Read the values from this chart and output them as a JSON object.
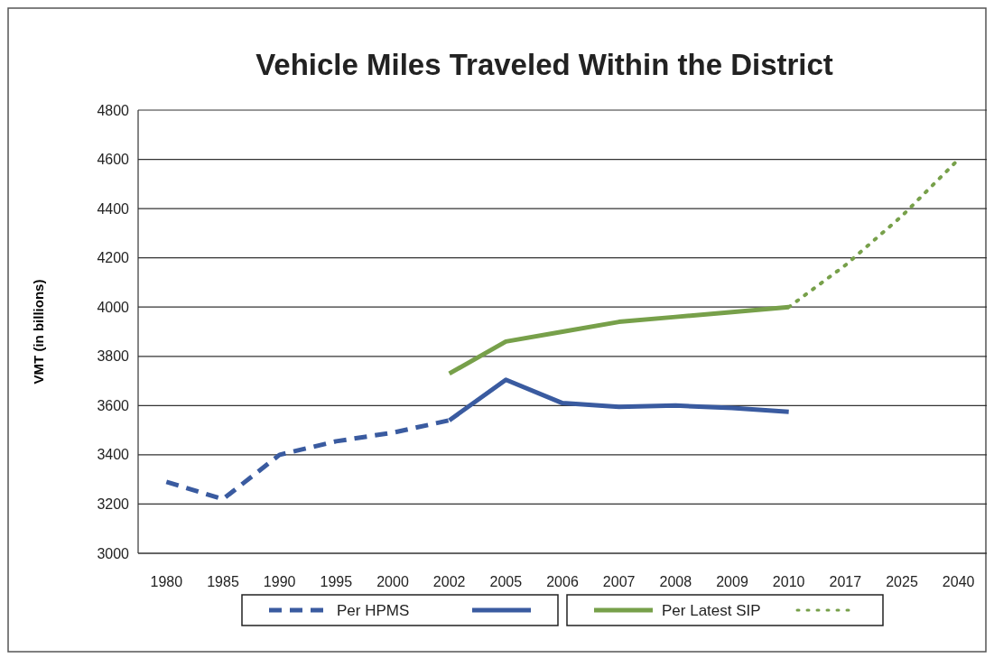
{
  "chart_data": {
    "type": "line",
    "title": "Vehicle Miles Traveled Within the District",
    "ylabel": "VMT (in billions)",
    "categories": [
      "1980",
      "1985",
      "1990",
      "1995",
      "2000",
      "2002",
      "2005",
      "2006",
      "2007",
      "2008",
      "2009",
      "2010",
      "2017",
      "2025",
      "2040"
    ],
    "series": [
      {
        "name": "Per HPMS",
        "color": "#3a5ba0",
        "line_style": "dashed",
        "values": [
          3290,
          3220,
          3400,
          3455,
          3490,
          3540,
          null,
          null,
          null,
          null,
          null,
          null,
          null,
          null,
          null
        ]
      },
      {
        "color": "#3a5ba0",
        "line_style": "solid",
        "values": [
          null,
          null,
          null,
          null,
          null,
          3540,
          3705,
          3610,
          3595,
          3600,
          3590,
          3575,
          null,
          null,
          null
        ]
      },
      {
        "name": "Per Latest SIP",
        "color": "#77a04a",
        "line_style": "solid",
        "values": [
          null,
          null,
          null,
          null,
          null,
          3730,
          3860,
          3900,
          3940,
          3960,
          3980,
          4000,
          null,
          null,
          null
        ]
      },
      {
        "color": "#77a04a",
        "line_style": "dotted",
        "values": [
          null,
          null,
          null,
          null,
          null,
          null,
          null,
          null,
          null,
          null,
          null,
          4000,
          4170,
          4370,
          4600
        ]
      }
    ],
    "ylim": [
      3000,
      4800
    ],
    "yticks": [
      3000,
      3200,
      3400,
      3600,
      3800,
      4000,
      4200,
      4400,
      4600,
      4800
    ],
    "grid": "y",
    "legend": "bottom",
    "marker": "none"
  }
}
